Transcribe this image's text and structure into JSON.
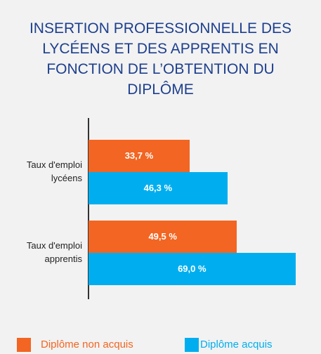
{
  "chart_data": {
    "type": "bar",
    "orientation": "horizontal",
    "title": "INSERTION PROFESSIONNELLE DES LYCÉENS ET DES APPRENTIS EN FONCTION DE L’OBTENTION DU DIPLÔME",
    "categories": [
      "Taux d'emploi lycéens",
      "Taux d'emploi apprentis"
    ],
    "series": [
      {
        "name": "Diplôme non acquis",
        "color": "#f26522",
        "values": [
          33.7,
          49.5
        ],
        "value_labels": [
          "33,7 %",
          "49,5 %"
        ]
      },
      {
        "name": "Diplôme acquis",
        "color": "#00aeef",
        "values": [
          46.3,
          69.0
        ],
        "value_labels": [
          "46,3 %",
          "69,0 %"
        ]
      }
    ],
    "legend": "bottom"
  }
}
